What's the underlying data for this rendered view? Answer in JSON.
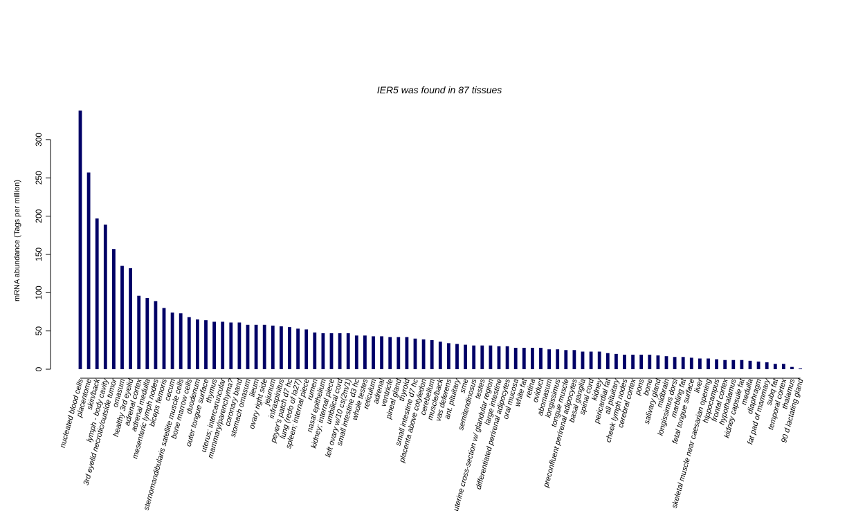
{
  "chart_data": {
    "type": "bar",
    "title": "IER5  was found in  87  tissues",
    "xlabel": "",
    "ylabel": "mRNA abundance (Tags per million)",
    "ylim": [
      0,
      340
    ],
    "yticks": [
      0,
      50,
      100,
      150,
      200,
      250,
      300
    ],
    "bar_color": "#000066",
    "grid": false,
    "categories": [
      "nucleated blood cells",
      "placentome",
      "skin/back",
      "lymph - body cavity",
      "3rd eyelid necrotic/outside tumor",
      "omasum",
      "healthy 3rd eyelid",
      "adrenal cortex",
      "adrenal medulla",
      "mesenteric lymph nodes",
      "biceps femoris",
      "cecum",
      "sternomandibularis satellite muscle cells",
      "bone marrow cells",
      "duodenum",
      "outer tongue surface",
      "thymus",
      "uterus; intercaruncular",
      "mammary/parenchyma?",
      "coronary band",
      "stomach omasum",
      "ileum",
      "ovary right side",
      "jejunum",
      "infraspinitus",
      "peyer's patch d7 hc",
      "lung (redo of la27)",
      "spleen; internal piece",
      "rumen",
      "nasal epithelium",
      "kidney; internal piece",
      "umbilical cord",
      "left ovary w/10 cs(2m/1)",
      "small intestine d3 hc",
      "whole testes",
      "reticulum",
      "adrenal",
      "ventricle",
      "pineal gland",
      "thyroid",
      "small intestine d7 hc",
      "placenta above cotyledon",
      "cerebellum",
      "muscle/back",
      "vas deferens",
      "ant. pituitary",
      "sme",
      "semitendinosus",
      "testes",
      "uterine cross-section w/ glandular region",
      "large intestine",
      "differentiated perirenal adipocytes",
      "oral mucosa",
      "white fat",
      "retina",
      "oviduct",
      "abomasum",
      "longissimus",
      "tongue muscle",
      "preconfluent perirenal adipocytes",
      "basal ganglia",
      "spinal cord",
      "kidney",
      "pericardial fat",
      "all pituitary",
      "cheek lymph nodes",
      "cerebral cortex",
      "pons",
      "bone",
      "salivary gland",
      "midbrain",
      "longissimus dorsi",
      "marbling fat",
      "fetal tongue surface",
      "liver",
      "skeletal muscle near caesarian opening",
      "hippocampus",
      "frontal cortex",
      "hypothalamus",
      "kidney capsule fat",
      "medulla",
      "diaphragm",
      "fat pad of mammary",
      "subq fat",
      "temporal cortex",
      "thalamus",
      "90 d lactating gland"
    ],
    "values": [
      338,
      257,
      197,
      189,
      157,
      135,
      132,
      96,
      93,
      89,
      80,
      74,
      73,
      68,
      65,
      64,
      62,
      62,
      61,
      61,
      58,
      58,
      58,
      57,
      56,
      55,
      53,
      52,
      48,
      47,
      47,
      47,
      47,
      44,
      44,
      43,
      43,
      42,
      42,
      42,
      40,
      39,
      38,
      36,
      34,
      33,
      32,
      31,
      31,
      31,
      30,
      30,
      28,
      28,
      28,
      28,
      26,
      26,
      25,
      25,
      23,
      23,
      23,
      21,
      20,
      19,
      19,
      19,
      19,
      18,
      17,
      16,
      16,
      15,
      14,
      14,
      13,
      12,
      12,
      12,
      11,
      10,
      9,
      7,
      7,
      3,
      1
    ]
  }
}
